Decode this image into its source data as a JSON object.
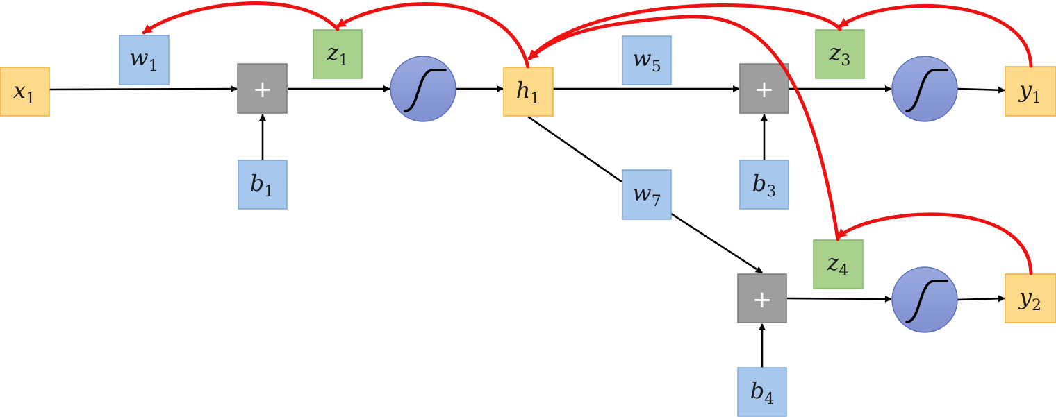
{
  "colors": {
    "input_output_fill": "#FFD98A",
    "input_output_stroke": "#F0B23A",
    "param_fill": "#A8C7EC",
    "param_stroke": "#7FA7D8",
    "preact_fill": "#A9D18E",
    "preact_stroke": "#86B66A",
    "sum_fill": "#9E9E9E",
    "sum_stroke": "#7A7A7A",
    "activation_fill": "#8FA0DA",
    "activation_stroke": "#5E72B8",
    "forward_arrow": "#000000",
    "backprop_arrow": "#EE1111"
  },
  "icons": {
    "sum_node": "plus-icon",
    "activation_node": "sigmoid-icon"
  },
  "nodes": {
    "x1": {
      "var": "x",
      "sub": "1"
    },
    "w1": {
      "var": "w",
      "sub": "1"
    },
    "b1": {
      "var": "b",
      "sub": "1"
    },
    "z1": {
      "var": "z",
      "sub": "1"
    },
    "h1": {
      "var": "h",
      "sub": "1"
    },
    "w5": {
      "var": "w",
      "sub": "5"
    },
    "w7": {
      "var": "w",
      "sub": "7"
    },
    "b3": {
      "var": "b",
      "sub": "3"
    },
    "b4": {
      "var": "b",
      "sub": "4"
    },
    "z3": {
      "var": "z",
      "sub": "3"
    },
    "z4": {
      "var": "z",
      "sub": "4"
    },
    "y1": {
      "var": "y",
      "sub": "1"
    },
    "y2": {
      "var": "y",
      "sub": "2"
    }
  },
  "sum_label": "+"
}
